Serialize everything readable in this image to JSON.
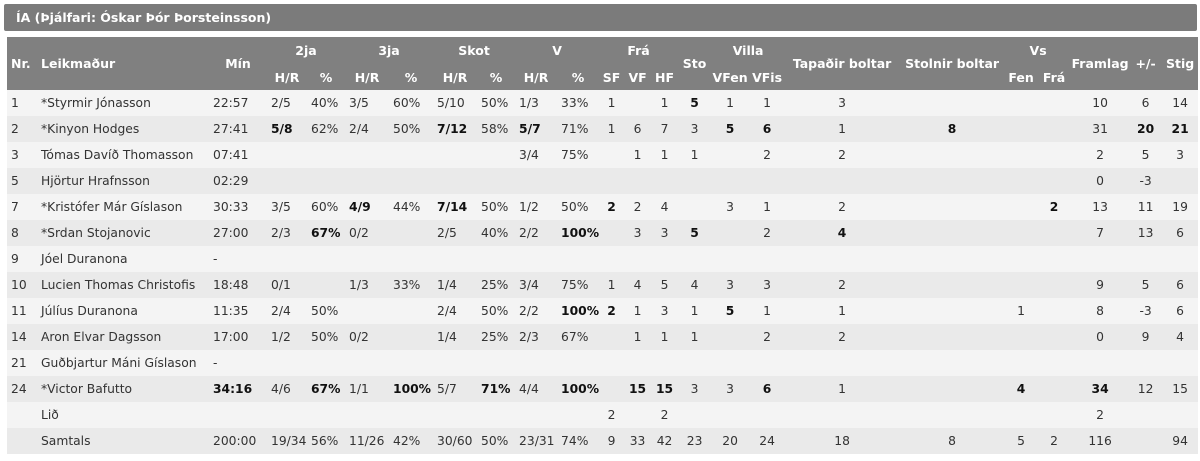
{
  "team_title": "ÍA (Þjálfari: Óskar Þór Þorsteinsson)",
  "header": {
    "nr": "Nr.",
    "player": "Leikmaður",
    "min": "Mín",
    "groups": {
      "two": "2ja",
      "three": "3ja",
      "shots": "Skot",
      "ft": "V",
      "reb": "Frá",
      "fouls": "Villa",
      "blocks": "Vs"
    },
    "hr": "H/R",
    "pct": "%",
    "sf": "SF",
    "vf": "VF",
    "hf": "HF",
    "sto": "Sto",
    "vfen": "VFen",
    "vfis": "VFis",
    "turnovers": "Tapaðir boltar",
    "steals": "Stolnir boltar",
    "fen": "Fen",
    "fra": "Frá",
    "eff": "Framlag",
    "pm": "+/-",
    "pts": "Stig"
  },
  "rows": [
    {
      "cells": [
        "1",
        "*Styrmir Jónasson",
        "22:57",
        "2/5",
        "40%",
        "3/5",
        "60%",
        "5/10",
        "50%",
        "1/3",
        "33%",
        "1",
        "",
        "1",
        "5",
        "1",
        "1",
        "3",
        "",
        "",
        "",
        "10",
        "6",
        "14"
      ],
      "bold": [
        14
      ]
    },
    {
      "cells": [
        "2",
        "*Kinyon Hodges",
        "27:41",
        "5/8",
        "62%",
        "2/4",
        "50%",
        "7/12",
        "58%",
        "5/7",
        "71%",
        "1",
        "6",
        "7",
        "3",
        "5",
        "6",
        "1",
        "8",
        "",
        "",
        "31",
        "20",
        "21"
      ],
      "bold": [
        3,
        7,
        9,
        15,
        16,
        18,
        22,
        23
      ]
    },
    {
      "cells": [
        "3",
        "Tómas Davíð Thomasson",
        "07:41",
        "",
        "",
        "",
        "",
        "",
        "",
        "3/4",
        "75%",
        "",
        "1",
        "1",
        "1",
        "",
        "2",
        "2",
        "",
        "",
        "",
        "2",
        "5",
        "3"
      ],
      "bold": []
    },
    {
      "cells": [
        "5",
        "Hjörtur Hrafnsson",
        "02:29",
        "",
        "",
        "",
        "",
        "",
        "",
        "",
        "",
        "",
        "",
        "",
        "",
        "",
        "",
        "",
        "",
        "",
        "",
        "0",
        "-3",
        ""
      ],
      "bold": []
    },
    {
      "cells": [
        "7",
        "*Kristófer Már Gíslason",
        "30:33",
        "3/5",
        "60%",
        "4/9",
        "44%",
        "7/14",
        "50%",
        "1/2",
        "50%",
        "2",
        "2",
        "4",
        "",
        "3",
        "1",
        "2",
        "",
        "",
        "2",
        "13",
        "11",
        "19"
      ],
      "bold": [
        5,
        7,
        11,
        20
      ]
    },
    {
      "cells": [
        "8",
        "*Srdan Stojanovic",
        "27:00",
        "2/3",
        "67%",
        "0/2",
        "",
        "2/5",
        "40%",
        "2/2",
        "100%",
        "",
        "3",
        "3",
        "5",
        "",
        "2",
        "4",
        "",
        "",
        "",
        "7",
        "13",
        "6"
      ],
      "bold": [
        4,
        10,
        14,
        17
      ]
    },
    {
      "cells": [
        "9",
        "Jóel Duranona",
        "-",
        "",
        "",
        "",
        "",
        "",
        "",
        "",
        "",
        "",
        "",
        "",
        "",
        "",
        "",
        "",
        "",
        "",
        "",
        "",
        "",
        ""
      ],
      "bold": []
    },
    {
      "cells": [
        "10",
        "Lucien Thomas Christofis",
        "18:48",
        "0/1",
        "",
        "1/3",
        "33%",
        "1/4",
        "25%",
        "3/4",
        "75%",
        "1",
        "4",
        "5",
        "4",
        "3",
        "3",
        "2",
        "",
        "",
        "",
        "9",
        "5",
        "6"
      ],
      "bold": []
    },
    {
      "cells": [
        "11",
        "Júlíus Duranona",
        "11:35",
        "2/4",
        "50%",
        "",
        "",
        "2/4",
        "50%",
        "2/2",
        "100%",
        "2",
        "1",
        "3",
        "1",
        "5",
        "1",
        "1",
        "",
        "1",
        "",
        "8",
        "-3",
        "6"
      ],
      "bold": [
        10,
        11,
        15
      ]
    },
    {
      "cells": [
        "14",
        "Aron Elvar Dagsson",
        "17:00",
        "1/2",
        "50%",
        "0/2",
        "",
        "1/4",
        "25%",
        "2/3",
        "67%",
        "",
        "1",
        "1",
        "1",
        "",
        "2",
        "2",
        "",
        "",
        "",
        "0",
        "9",
        "4"
      ],
      "bold": []
    },
    {
      "cells": [
        "21",
        "Guðbjartur Máni Gíslason",
        "-",
        "",
        "",
        "",
        "",
        "",
        "",
        "",
        "",
        "",
        "",
        "",
        "",
        "",
        "",
        "",
        "",
        "",
        "",
        "",
        "",
        ""
      ],
      "bold": []
    },
    {
      "cells": [
        "24",
        "*Victor Bafutto",
        "34:16",
        "4/6",
        "67%",
        "1/1",
        "100%",
        "5/7",
        "71%",
        "4/4",
        "100%",
        "",
        "15",
        "15",
        "3",
        "3",
        "6",
        "1",
        "",
        "4",
        "",
        "34",
        "12",
        "15"
      ],
      "bold": [
        2,
        4,
        6,
        8,
        10,
        12,
        13,
        16,
        19,
        21
      ]
    },
    {
      "cells": [
        "",
        "Lið",
        "",
        "",
        "",
        "",
        "",
        "",
        "",
        "",
        "",
        "2",
        "",
        "2",
        "",
        "",
        "",
        "",
        "",
        "",
        "",
        "2",
        "",
        ""
      ],
      "bold": []
    },
    {
      "cells": [
        "",
        "Samtals",
        "200:00",
        "19/34",
        "56%",
        "11/26",
        "42%",
        "30/60",
        "50%",
        "23/31",
        "74%",
        "9",
        "33",
        "42",
        "23",
        "20",
        "24",
        "18",
        "8",
        "5",
        "2",
        "116",
        "",
        "94"
      ],
      "bold": []
    }
  ]
}
